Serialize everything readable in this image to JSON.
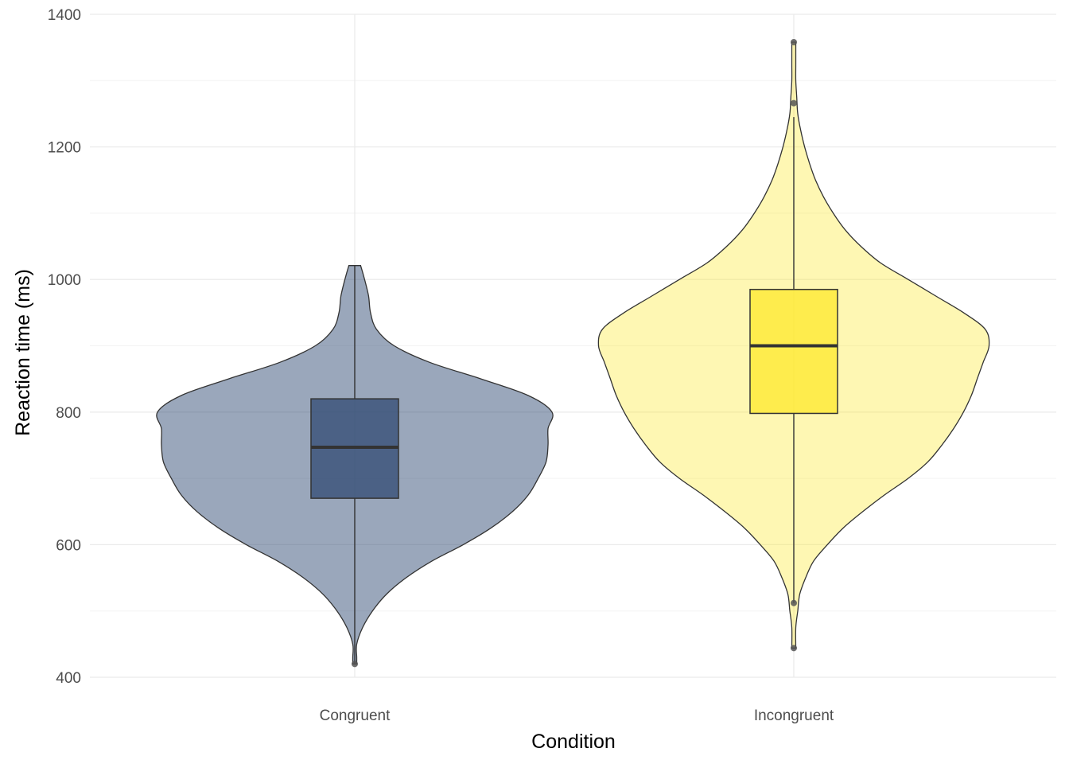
{
  "chart_data": {
    "type": "violin",
    "xlabel": "Condition",
    "ylabel": "Reaction time (ms)",
    "ylim": [
      400,
      1400
    ],
    "y_ticks": [
      400,
      600,
      800,
      1000,
      1200,
      1400
    ],
    "y_tick_labels": [
      "400",
      "600",
      "800",
      "1000",
      "1200",
      "1400"
    ],
    "grid": true,
    "legend": "none",
    "categories": [
      "Congruent",
      "Incongruent"
    ],
    "series": [
      {
        "category": "Congruent",
        "color": "#2c4770",
        "violin_alpha": 0.48,
        "box": {
          "min": 420,
          "q1": 670,
          "median": 747,
          "q3": 820,
          "max": 1021
        },
        "outliers": [
          420
        ],
        "density": [
          [
            420,
            0.01
          ],
          [
            430,
            0.01
          ],
          [
            450,
            0.01
          ],
          [
            475,
            0.04
          ],
          [
            500,
            0.09
          ],
          [
            525,
            0.16
          ],
          [
            550,
            0.26
          ],
          [
            575,
            0.39
          ],
          [
            600,
            0.55
          ],
          [
            625,
            0.69
          ],
          [
            650,
            0.8
          ],
          [
            675,
            0.88
          ],
          [
            700,
            0.93
          ],
          [
            725,
            0.97
          ],
          [
            750,
            0.98
          ],
          [
            775,
            0.98
          ],
          [
            800,
            1.0
          ],
          [
            825,
            0.88
          ],
          [
            850,
            0.64
          ],
          [
            875,
            0.38
          ],
          [
            900,
            0.2
          ],
          [
            925,
            0.11
          ],
          [
            950,
            0.08
          ],
          [
            975,
            0.07
          ],
          [
            1000,
            0.05
          ],
          [
            1021,
            0.03
          ]
        ]
      },
      {
        "category": "Incongruent",
        "color": "#fde725",
        "violin_alpha": 0.35,
        "box": {
          "min": 512,
          "q1": 798,
          "median": 900,
          "q3": 985,
          "max": 1245
        },
        "outliers": [
          444,
          512,
          1266,
          1358
        ],
        "density": [
          [
            444,
            0.01
          ],
          [
            475,
            0.01
          ],
          [
            500,
            0.02
          ],
          [
            525,
            0.03
          ],
          [
            550,
            0.06
          ],
          [
            575,
            0.1
          ],
          [
            600,
            0.17
          ],
          [
            625,
            0.25
          ],
          [
            650,
            0.35
          ],
          [
            675,
            0.46
          ],
          [
            700,
            0.58
          ],
          [
            725,
            0.68
          ],
          [
            750,
            0.75
          ],
          [
            775,
            0.81
          ],
          [
            800,
            0.86
          ],
          [
            825,
            0.9
          ],
          [
            850,
            0.93
          ],
          [
            875,
            0.96
          ],
          [
            900,
            0.99
          ],
          [
            925,
            0.97
          ],
          [
            950,
            0.86
          ],
          [
            975,
            0.72
          ],
          [
            1000,
            0.58
          ],
          [
            1025,
            0.44
          ],
          [
            1050,
            0.34
          ],
          [
            1075,
            0.26
          ],
          [
            1100,
            0.2
          ],
          [
            1125,
            0.15
          ],
          [
            1150,
            0.11
          ],
          [
            1175,
            0.08
          ],
          [
            1200,
            0.055
          ],
          [
            1225,
            0.035
          ],
          [
            1250,
            0.02
          ],
          [
            1275,
            0.015
          ],
          [
            1300,
            0.01
          ],
          [
            1325,
            0.01
          ],
          [
            1358,
            0.01
          ]
        ]
      }
    ]
  }
}
